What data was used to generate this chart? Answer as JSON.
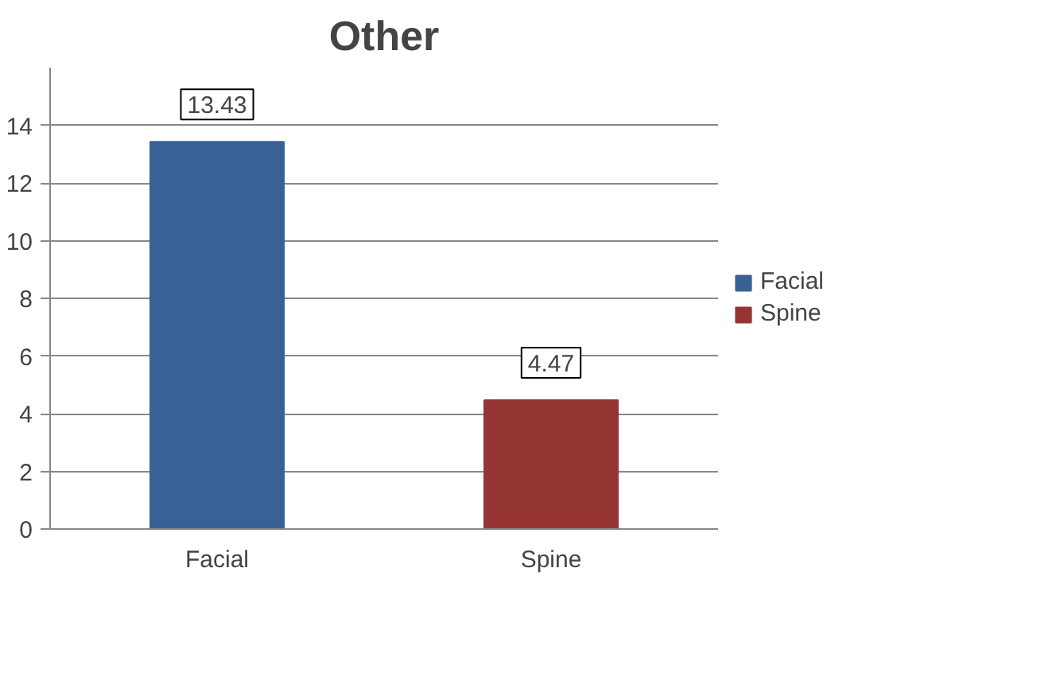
{
  "chart_data": {
    "type": "bar",
    "title": "Other",
    "categories": [
      "Facial",
      "Spine"
    ],
    "series": [
      {
        "name": "Facial",
        "color": "#3a6196",
        "values": [
          13.43,
          null
        ]
      },
      {
        "name": "Spine",
        "color": "#963634",
        "values": [
          null,
          4.47
        ]
      }
    ],
    "ylim": [
      0,
      16
    ],
    "yticks": [
      0,
      2,
      4,
      6,
      8,
      10,
      12,
      14
    ],
    "grid": "y",
    "legend": "right",
    "data_labels": true
  }
}
